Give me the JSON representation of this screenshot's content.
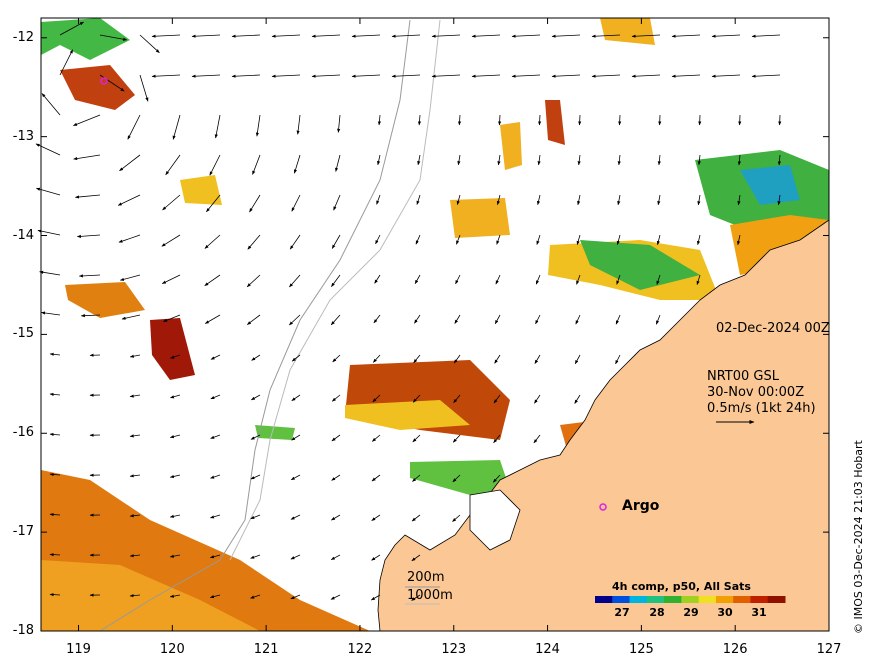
{
  "map": {
    "lat_ticks": [
      "-12",
      "-13",
      "-14",
      "-15",
      "-16",
      "-17",
      "-18"
    ],
    "lon_ticks": [
      "119",
      "120",
      "121",
      "122",
      "123",
      "124",
      "125",
      "126",
      "127"
    ],
    "lat_range": [
      -18,
      -11.8
    ],
    "lon_range": [
      118.6,
      127
    ]
  },
  "annotations": {
    "date": "02-Dec-2024 00Z",
    "product_line1": "NRT00 GSL",
    "product_line2": "30-Nov 00:00Z",
    "product_line3": "0.5m/s (1kt 24h)",
    "argo": "Argo",
    "contour_200": "200m",
    "contour_1000": "1000m"
  },
  "colorbar": {
    "title": "4h comp, p50, All Sats",
    "ticks": [
      "27",
      "28",
      "29",
      "30",
      "31"
    ],
    "colors": [
      "#00008b",
      "#0050e0",
      "#00b4e0",
      "#20c080",
      "#30b030",
      "#a0d020",
      "#f0e020",
      "#f0a000",
      "#e06000",
      "#c02000",
      "#901000"
    ]
  },
  "credit": "© IMOS 03-Dec-2024 21:03 Hobart",
  "colors": {
    "land": "#fbc895",
    "sea": "#ffffff"
  }
}
